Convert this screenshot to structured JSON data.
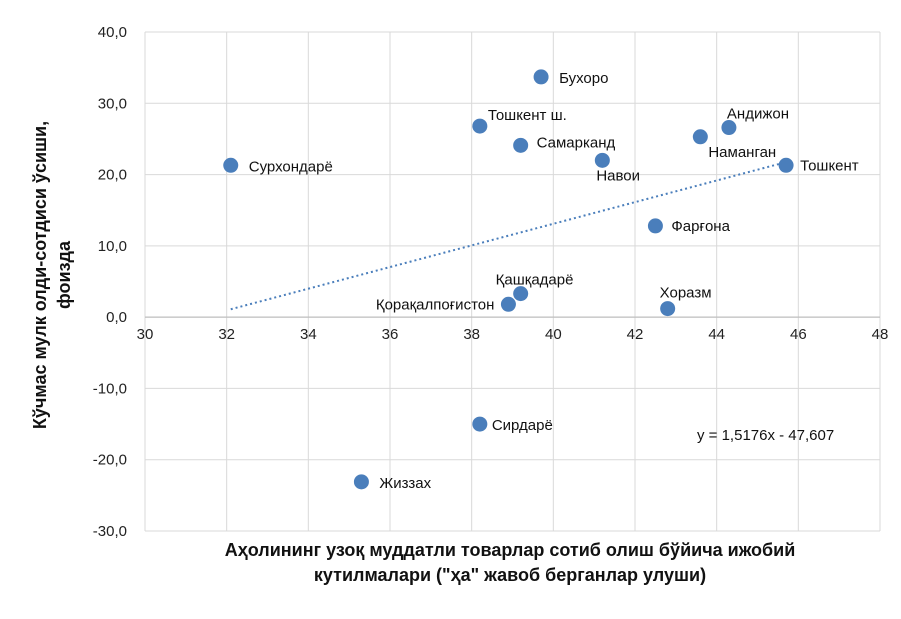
{
  "chart_data": {
    "type": "scatter",
    "title": "",
    "xlabel_lines": [
      "Аҳолининг узоқ муддатли товарлар сотиб олиш бўйича ижобий",
      "кутилмалари (\"ҳа\" жавоб берганлар улуши)"
    ],
    "ylabel_lines": [
      "Кўчмас мулк олди-сотдиси ўсиши,",
      "фоизда"
    ],
    "xlim": [
      30,
      48
    ],
    "ylim": [
      -30,
      40
    ],
    "x_ticks": [
      "30",
      "32",
      "34",
      "36",
      "38",
      "40",
      "42",
      "44",
      "46",
      "48"
    ],
    "y_ticks": [
      "-30,0",
      "-20,0",
      "-10,0",
      "0,0",
      "10,0",
      "20,0",
      "30,0",
      "40,0"
    ],
    "grid": true,
    "point_color": "#4a7ebb",
    "trend_color": "#4a7ebb",
    "points": [
      {
        "label": "Сурхондарё",
        "x": 32.1,
        "y": 21.3
      },
      {
        "label": "Тошкент ш.",
        "x": 38.2,
        "y": 26.8
      },
      {
        "label": "Бухоро",
        "x": 39.7,
        "y": 33.7
      },
      {
        "label": "Самарканд",
        "x": 39.2,
        "y": 24.1
      },
      {
        "label": "Навои",
        "x": 41.2,
        "y": 22.0
      },
      {
        "label": "Андижон",
        "x": 44.3,
        "y": 26.6
      },
      {
        "label": "Наманган",
        "x": 43.6,
        "y": 25.3
      },
      {
        "label": "Тошкент",
        "x": 45.7,
        "y": 21.3
      },
      {
        "label": "Фарғона",
        "x": 42.5,
        "y": 12.8
      },
      {
        "label": "Қашқадарё",
        "x": 39.2,
        "y": 3.3
      },
      {
        "label": "Қорақалпоғистон",
        "x": 38.9,
        "y": 1.8
      },
      {
        "label": "Хоразм",
        "x": 42.8,
        "y": 1.2
      },
      {
        "label": "Сирдарё",
        "x": 38.2,
        "y": -15.0
      },
      {
        "label": "Жиззах",
        "x": 35.3,
        "y": -23.1
      }
    ],
    "trendline": {
      "slope": 1.5176,
      "intercept": -47.607,
      "x_from": 32.1,
      "x_to": 45.7,
      "style": "dotted"
    },
    "equation_text": "y = 1,5176x - 47,607"
  }
}
